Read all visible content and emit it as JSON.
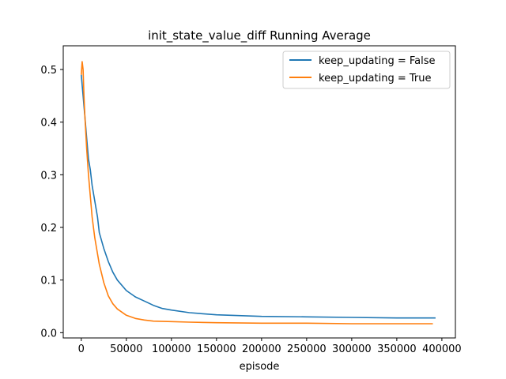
{
  "chart_data": {
    "type": "line",
    "title": "init_state_value_diff Running Average",
    "xlabel": "episode",
    "ylabel": "",
    "xlim": [
      -20000,
      415000
    ],
    "ylim": [
      -0.01,
      0.545
    ],
    "xticks": [
      0,
      50000,
      100000,
      150000,
      200000,
      250000,
      300000,
      350000,
      400000
    ],
    "xtick_labels": [
      "0",
      "50000",
      "100000",
      "150000",
      "200000",
      "250000",
      "300000",
      "350000",
      "400000"
    ],
    "yticks": [
      0.0,
      0.1,
      0.2,
      0.3,
      0.4,
      0.5
    ],
    "ytick_labels": [
      "0.0",
      "0.1",
      "0.2",
      "0.3",
      "0.4",
      "0.5"
    ],
    "grid": false,
    "legend_position": "top-right",
    "series": [
      {
        "name": "keep_updating = False",
        "color": "#1f77b4",
        "x": [
          0,
          2000,
          4000,
          6000,
          8000,
          10000,
          12000,
          15000,
          18000,
          20000,
          25000,
          30000,
          35000,
          40000,
          50000,
          60000,
          70000,
          80000,
          90000,
          100000,
          120000,
          150000,
          200000,
          250000,
          300000,
          350000,
          393000
        ],
        "y": [
          0.49,
          0.45,
          0.41,
          0.37,
          0.33,
          0.31,
          0.28,
          0.25,
          0.22,
          0.19,
          0.16,
          0.135,
          0.115,
          0.1,
          0.08,
          0.068,
          0.06,
          0.052,
          0.046,
          0.043,
          0.038,
          0.034,
          0.031,
          0.03,
          0.029,
          0.028,
          0.028
        ]
      },
      {
        "name": "keep_updating = True",
        "color": "#ff7f0e",
        "x": [
          0,
          1000,
          2000,
          3000,
          4000,
          6000,
          8000,
          10000,
          12000,
          15000,
          18000,
          20000,
          25000,
          30000,
          35000,
          40000,
          50000,
          60000,
          70000,
          80000,
          100000,
          120000,
          150000,
          200000,
          250000,
          300000,
          350000,
          390000
        ],
        "y": [
          0.49,
          0.515,
          0.5,
          0.45,
          0.41,
          0.35,
          0.3,
          0.26,
          0.22,
          0.18,
          0.15,
          0.13,
          0.095,
          0.07,
          0.055,
          0.045,
          0.033,
          0.027,
          0.024,
          0.022,
          0.021,
          0.02,
          0.019,
          0.018,
          0.018,
          0.017,
          0.017,
          0.017
        ]
      }
    ]
  }
}
